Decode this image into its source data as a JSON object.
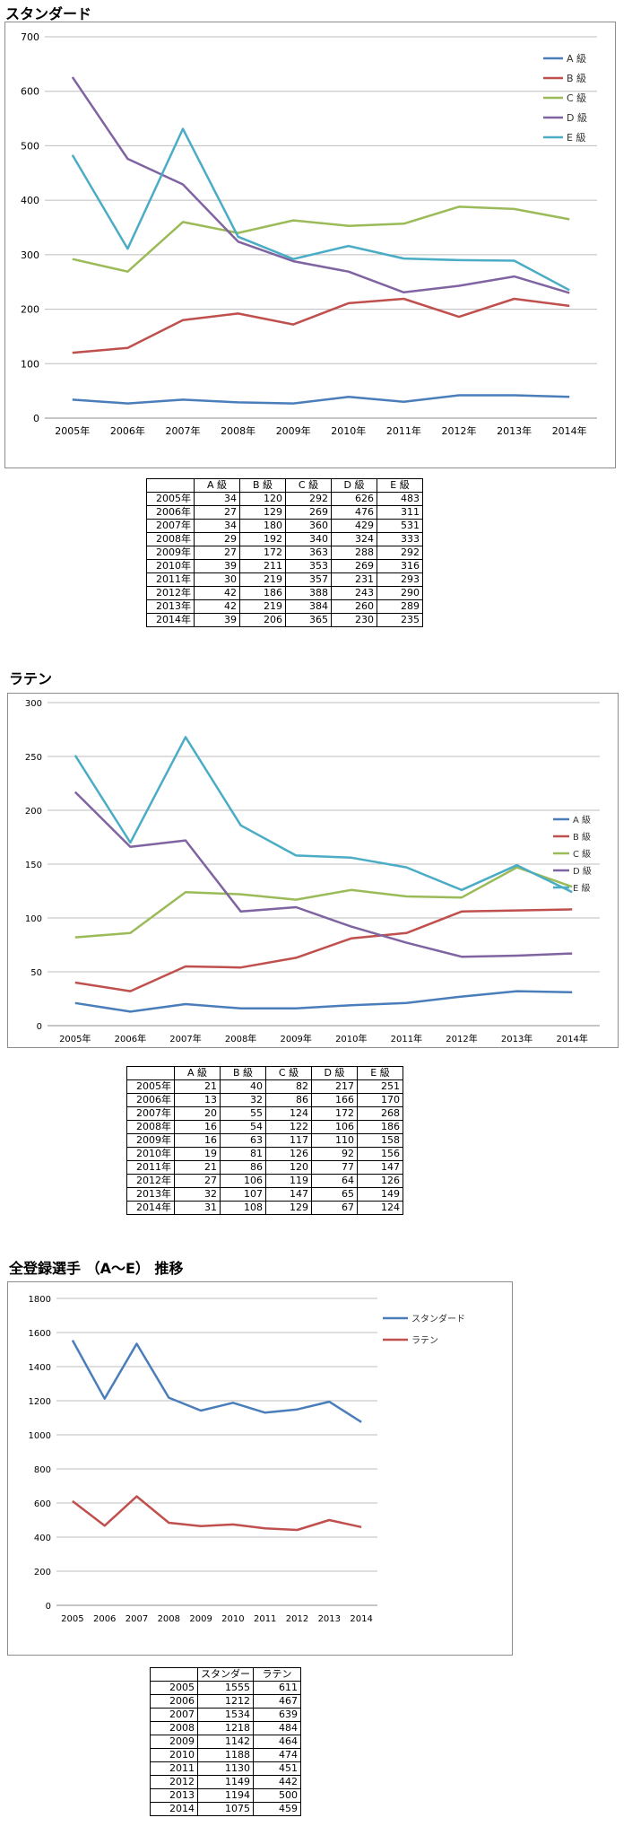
{
  "sections": [
    {
      "title": "スタンダード"
    },
    {
      "title": "ラテン"
    },
    {
      "title": "全登録選手 （A～E） 推移"
    }
  ],
  "chart_data": [
    {
      "type": "line",
      "categories": [
        "2005年",
        "2006年",
        "2007年",
        "2008年",
        "2009年",
        "2010年",
        "2011年",
        "2012年",
        "2013年",
        "2014年"
      ],
      "ylim": [
        0,
        700
      ],
      "yticks": [
        0,
        100,
        200,
        300,
        400,
        500,
        600,
        700
      ],
      "grid": true,
      "legend": "right",
      "series": [
        {
          "name": "A 級",
          "color": "#4a7ebb",
          "values": [
            34,
            27,
            34,
            29,
            27,
            39,
            30,
            42,
            42,
            39
          ]
        },
        {
          "name": "B 級",
          "color": "#c0504d",
          "values": [
            120,
            129,
            180,
            192,
            172,
            211,
            219,
            186,
            219,
            206
          ]
        },
        {
          "name": "C 級",
          "color": "#9bbb59",
          "values": [
            292,
            269,
            360,
            340,
            363,
            353,
            357,
            388,
            384,
            365
          ]
        },
        {
          "name": "D 級",
          "color": "#8064a2",
          "values": [
            626,
            476,
            429,
            324,
            288,
            269,
            231,
            243,
            260,
            230
          ]
        },
        {
          "name": "E 級",
          "color": "#4bacc6",
          "values": [
            483,
            311,
            531,
            333,
            292,
            316,
            293,
            290,
            289,
            235
          ]
        }
      ]
    },
    {
      "type": "line",
      "categories": [
        "2005年",
        "2006年",
        "2007年",
        "2008年",
        "2009年",
        "2010年",
        "2011年",
        "2012年",
        "2013年",
        "2014年"
      ],
      "ylim": [
        0,
        300
      ],
      "yticks": [
        0,
        50,
        100,
        150,
        200,
        250,
        300
      ],
      "grid": true,
      "legend": "right",
      "series": [
        {
          "name": "A 級",
          "color": "#4a7ebb",
          "values": [
            21,
            13,
            20,
            16,
            16,
            19,
            21,
            27,
            32,
            31
          ]
        },
        {
          "name": "B 級",
          "color": "#c0504d",
          "values": [
            40,
            32,
            55,
            54,
            63,
            81,
            86,
            106,
            107,
            108
          ]
        },
        {
          "name": "C 級",
          "color": "#9bbb59",
          "values": [
            82,
            86,
            124,
            122,
            117,
            126,
            120,
            119,
            147,
            129
          ]
        },
        {
          "name": "D 級",
          "color": "#8064a2",
          "values": [
            217,
            166,
            172,
            106,
            110,
            92,
            77,
            64,
            65,
            67
          ]
        },
        {
          "name": "E 級",
          "color": "#4bacc6",
          "values": [
            251,
            170,
            268,
            186,
            158,
            156,
            147,
            126,
            149,
            124
          ]
        }
      ]
    },
    {
      "type": "line",
      "categories": [
        "2005",
        "2006",
        "2007",
        "2008",
        "2009",
        "2010",
        "2011",
        "2012",
        "2013",
        "2014"
      ],
      "ylim": [
        0,
        1800
      ],
      "yticks": [
        0,
        200,
        400,
        600,
        800,
        1000,
        1200,
        1400,
        1600,
        1800
      ],
      "grid": true,
      "legend": "top-right",
      "series": [
        {
          "name": "スタンダード",
          "color": "#4a7ebb",
          "values": [
            1555,
            1212,
            1534,
            1218,
            1142,
            1188,
            1130,
            1149,
            1194,
            1075
          ]
        },
        {
          "name": "ラテン",
          "color": "#c0504d",
          "values": [
            611,
            467,
            639,
            484,
            464,
            474,
            451,
            442,
            500,
            459
          ]
        }
      ]
    }
  ],
  "tables": [
    {
      "columns": [
        "",
        "A 級",
        "B 級",
        "C 級",
        "D 級",
        "E 級"
      ],
      "rows": [
        [
          "2005年",
          "34",
          "120",
          "292",
          "626",
          "483"
        ],
        [
          "2006年",
          "27",
          "129",
          "269",
          "476",
          "311"
        ],
        [
          "2007年",
          "34",
          "180",
          "360",
          "429",
          "531"
        ],
        [
          "2008年",
          "29",
          "192",
          "340",
          "324",
          "333"
        ],
        [
          "2009年",
          "27",
          "172",
          "363",
          "288",
          "292"
        ],
        [
          "2010年",
          "39",
          "211",
          "353",
          "269",
          "316"
        ],
        [
          "2011年",
          "30",
          "219",
          "357",
          "231",
          "293"
        ],
        [
          "2012年",
          "42",
          "186",
          "388",
          "243",
          "290"
        ],
        [
          "2013年",
          "42",
          "219",
          "384",
          "260",
          "289"
        ],
        [
          "2014年",
          "39",
          "206",
          "365",
          "230",
          "235"
        ]
      ]
    },
    {
      "columns": [
        "",
        "A 級",
        "B 級",
        "C 級",
        "D 級",
        "E 級"
      ],
      "rows": [
        [
          "2005年",
          "21",
          "40",
          "82",
          "217",
          "251"
        ],
        [
          "2006年",
          "13",
          "32",
          "86",
          "166",
          "170"
        ],
        [
          "2007年",
          "20",
          "55",
          "124",
          "172",
          "268"
        ],
        [
          "2008年",
          "16",
          "54",
          "122",
          "106",
          "186"
        ],
        [
          "2009年",
          "16",
          "63",
          "117",
          "110",
          "158"
        ],
        [
          "2010年",
          "19",
          "81",
          "126",
          "92",
          "156"
        ],
        [
          "2011年",
          "21",
          "86",
          "120",
          "77",
          "147"
        ],
        [
          "2012年",
          "27",
          "106",
          "119",
          "64",
          "126"
        ],
        [
          "2013年",
          "32",
          "107",
          "147",
          "65",
          "149"
        ],
        [
          "2014年",
          "31",
          "108",
          "129",
          "67",
          "124"
        ]
      ]
    },
    {
      "columns": [
        "",
        "スタンダー",
        "ラテン"
      ],
      "rows": [
        [
          "2005",
          "1555",
          "611"
        ],
        [
          "2006",
          "1212",
          "467"
        ],
        [
          "2007",
          "1534",
          "639"
        ],
        [
          "2008",
          "1218",
          "484"
        ],
        [
          "2009",
          "1142",
          "464"
        ],
        [
          "2010",
          "1188",
          "474"
        ],
        [
          "2011",
          "1130",
          "451"
        ],
        [
          "2012",
          "1149",
          "442"
        ],
        [
          "2013",
          "1194",
          "500"
        ],
        [
          "2014",
          "1075",
          "459"
        ]
      ]
    }
  ]
}
